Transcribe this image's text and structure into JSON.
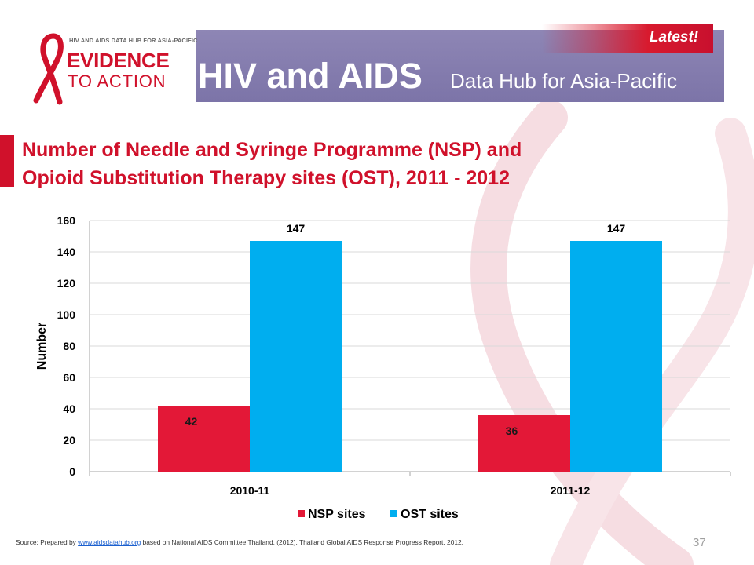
{
  "header": {
    "logo_small_text": "HIV AND AIDS DATA HUB FOR ASIA-PACIFIC",
    "logo_evidence": "EVIDENCE",
    "logo_to_action": "TO ACTION",
    "hub_title": "HIV and AIDS",
    "hub_subtitle": "Data Hub for Asia-Pacific",
    "latest_label": "Latest!",
    "colors": {
      "band": "#8e86b5",
      "brand_red": "#d0112b"
    },
    "icons": [
      "red-ribbon-icon"
    ]
  },
  "slide": {
    "title_line1": "Number of Needle and Syringe Programme (NSP) and",
    "title_line2": "Opioid Substitution Therapy sites (OST), 2011 - 2012"
  },
  "chart_data": {
    "type": "bar",
    "categories": [
      "2010-11",
      "2011-12"
    ],
    "series": [
      {
        "name": "NSP sites",
        "values": [
          42,
          36
        ],
        "color": "#e31837"
      },
      {
        "name": "OST sites",
        "values": [
          147,
          147
        ],
        "color": "#00aeef"
      }
    ],
    "ylabel": "Number",
    "ylim": [
      0,
      160
    ],
    "yticks": [
      0,
      20,
      40,
      60,
      80,
      100,
      120,
      140,
      160
    ],
    "grid": true,
    "legend_position": "bottom"
  },
  "footer": {
    "source_prefix": "Source: Prepared by ",
    "source_link": "www.aidsdatahub.org",
    "source_suffix": " based on National AIDS Committee Thailand. (2012). Thailand Global AIDS Response Progress Report, 2012.",
    "page_number": "37"
  }
}
